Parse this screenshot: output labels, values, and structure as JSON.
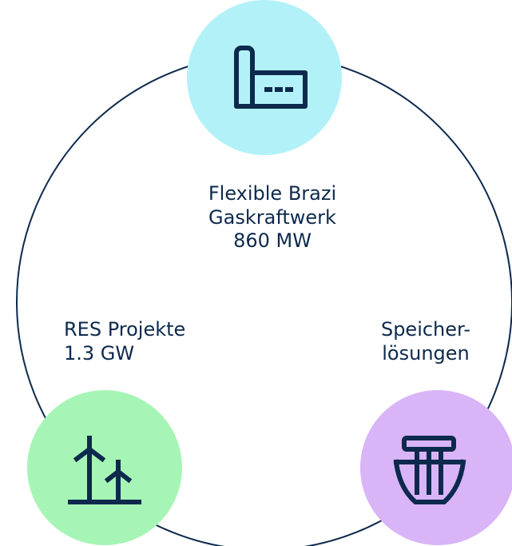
{
  "nodes": [
    {
      "lines": [
        "Flexible Brazi",
        "Gaskraftwerk",
        "860 MW"
      ]
    },
    {
      "lines": [
        "RES Projekte",
        "1.3 GW"
      ]
    },
    {
      "lines": [
        "Speicher-",
        "lösungen"
      ]
    }
  ]
}
